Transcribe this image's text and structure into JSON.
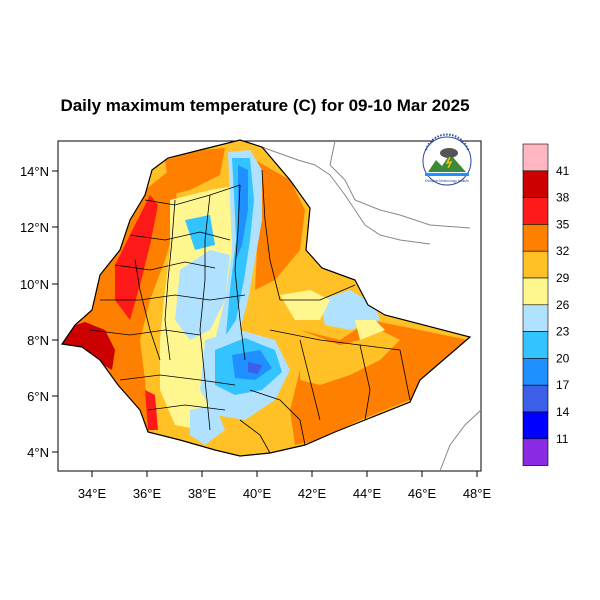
{
  "title": "Daily maximum temperature (C) for 09-10 Mar 2025",
  "map": {
    "lon_range": [
      33.0,
      48.2
    ],
    "lat_range": [
      3.2,
      15.0
    ],
    "x_ticks": [
      "34°E",
      "36°E",
      "38°E",
      "40°E",
      "42°E",
      "44°E",
      "46°E",
      "48°E"
    ],
    "y_ticks": [
      "14°N",
      "12°N",
      "10°N",
      "8°N",
      "6°N",
      "4°N"
    ]
  },
  "colorbar": {
    "labels": [
      "41",
      "38",
      "35",
      "32",
      "29",
      "26",
      "23",
      "20",
      "17",
      "14",
      "11"
    ],
    "colors": [
      "#ffb6c1",
      "#cc0000",
      "#ff1a1a",
      "#ff7f00",
      "#ffc125",
      "#fff68f",
      "#b0e2ff",
      "#33c3ff",
      "#1e90ff",
      "#3b5fe8",
      "#0000ff",
      "#8a2be2"
    ]
  },
  "logo": {
    "text": "Ethiopian Meteorology Institute"
  }
}
